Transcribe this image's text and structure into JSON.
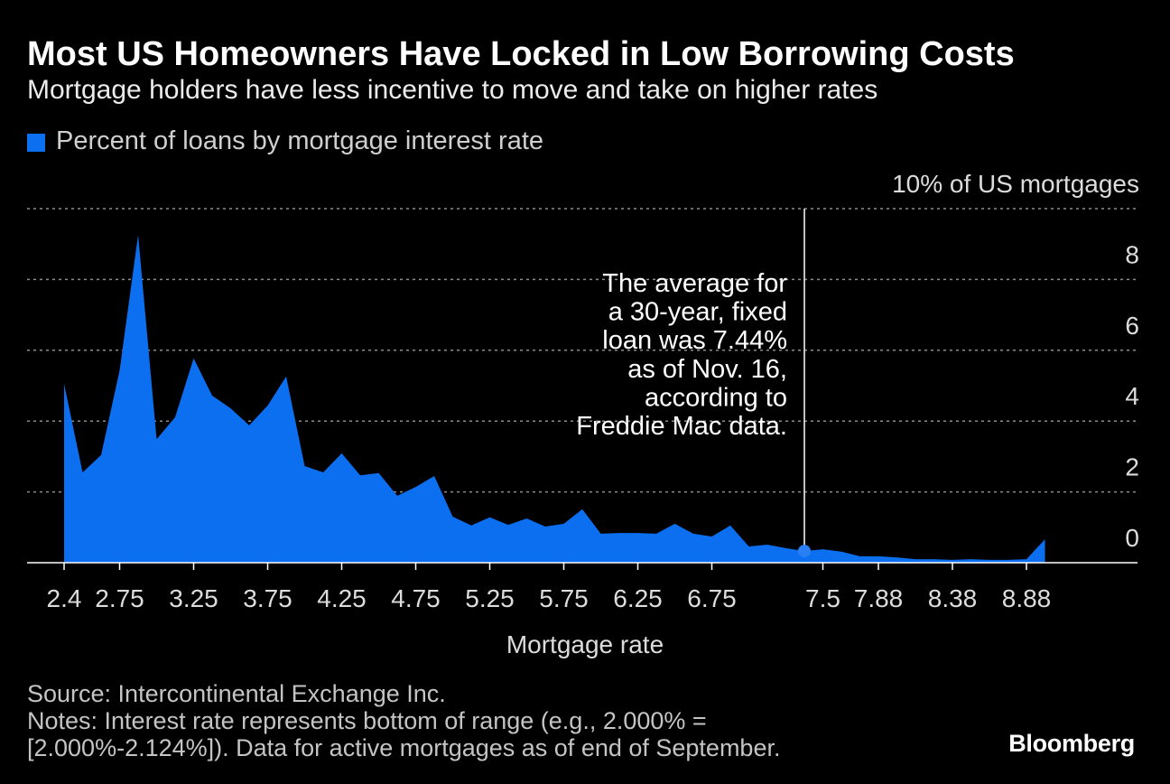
{
  "chart_data": {
    "type": "area",
    "title": "Most US Homeowners Have Locked in Low Borrowing Costs",
    "subtitle": "Mortgage holders have less incentive to move and take on higher rates",
    "xlabel": "Mortgage rate",
    "grid": true,
    "xlim": [
      2.125,
      9.625
    ],
    "ylim": [
      0,
      10
    ],
    "x": [
      2.375,
      2.5,
      2.625,
      2.75,
      2.875,
      3.0,
      3.125,
      3.25,
      3.375,
      3.5,
      3.625,
      3.75,
      3.875,
      4.0,
      4.125,
      4.25,
      4.375,
      4.5,
      4.625,
      4.75,
      4.875,
      5.0,
      5.125,
      5.25,
      5.375,
      5.5,
      5.625,
      5.75,
      5.875,
      6.0,
      6.125,
      6.25,
      6.375,
      6.5,
      6.625,
      6.75,
      6.875,
      7.0,
      7.125,
      7.25,
      7.375,
      7.5,
      7.625,
      7.75,
      7.875,
      8.0,
      8.125,
      8.25,
      8.375,
      8.5,
      8.625,
      8.75,
      8.875,
      9.0
    ],
    "series": [
      {
        "name": "Percent of loans by mortgage interest rate",
        "color": "#0b6ff0",
        "values": [
          5.05,
          2.55,
          3.04,
          5.43,
          9.26,
          3.49,
          4.11,
          5.77,
          4.72,
          4.36,
          3.88,
          4.44,
          5.26,
          2.73,
          2.55,
          3.09,
          2.47,
          2.53,
          1.89,
          2.14,
          2.45,
          1.3,
          1.05,
          1.28,
          1.07,
          1.25,
          1.02,
          1.1,
          1.51,
          0.82,
          0.84,
          0.84,
          0.82,
          1.1,
          0.82,
          0.74,
          1.05,
          0.46,
          0.51,
          0.41,
          0.33,
          0.38,
          0.31,
          0.18,
          0.18,
          0.15,
          0.1,
          0.1,
          0.08,
          0.1,
          0.08,
          0.08,
          0.1,
          0.66
        ]
      }
    ],
    "x_ticks": [
      {
        "value": 2.375,
        "label": "2.4"
      },
      {
        "value": 2.75,
        "label": "2.75"
      },
      {
        "value": 3.25,
        "label": "3.25"
      },
      {
        "value": 3.75,
        "label": "3.75"
      },
      {
        "value": 4.25,
        "label": "4.25"
      },
      {
        "value": 4.75,
        "label": "4.75"
      },
      {
        "value": 5.25,
        "label": "5.25"
      },
      {
        "value": 5.75,
        "label": "5.75"
      },
      {
        "value": 6.25,
        "label": "6.25"
      },
      {
        "value": 6.75,
        "label": "6.75"
      },
      {
        "value": 7.5,
        "label": "7.5"
      },
      {
        "value": 7.875,
        "label": "7.88"
      },
      {
        "value": 8.375,
        "label": "8.38"
      },
      {
        "value": 8.875,
        "label": "8.88"
      }
    ],
    "y_ticks": [
      {
        "value": 10,
        "label": "10% of US mortgages"
      },
      {
        "value": 8,
        "label": "8"
      },
      {
        "value": 6,
        "label": "6"
      },
      {
        "value": 4,
        "label": "4"
      },
      {
        "value": 2,
        "label": "2"
      },
      {
        "value": 0,
        "label": "0"
      }
    ],
    "annotation": {
      "x": 7.375,
      "lines": [
        "The average for",
        "a 30-year, fixed",
        "loan was 7.44%",
        "as of Nov. 16,",
        "according to",
        "Freddie Mac data."
      ]
    }
  },
  "source": "Source: Intercontinental Exchange Inc.",
  "notes": [
    "Notes: Interest rate represents bottom of range (e.g., 2.000% =",
    "[2.000%-2.124%]). Data for active mortgages as of end of September."
  ],
  "brand": "Bloomberg"
}
